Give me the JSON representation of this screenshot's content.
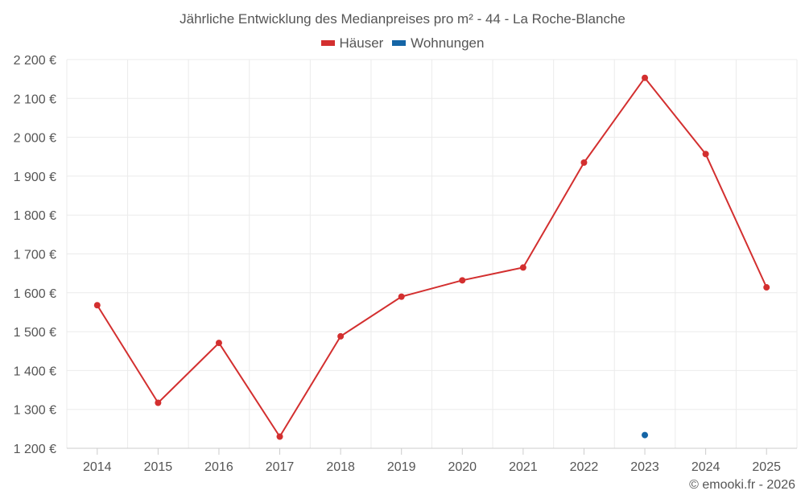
{
  "chart_data": {
    "type": "line",
    "title": "Jährliche Entwicklung des Medianpreises pro m² - 44 - La Roche-Blanche",
    "xlabel": "",
    "ylabel": "",
    "categories": [
      "2014",
      "2015",
      "2016",
      "2017",
      "2018",
      "2019",
      "2020",
      "2021",
      "2022",
      "2023",
      "2024",
      "2025"
    ],
    "ylim": [
      1200,
      2200
    ],
    "yticks": [
      1200,
      1300,
      1400,
      1500,
      1600,
      1700,
      1800,
      1900,
      2000,
      2100,
      2200
    ],
    "ytick_labels": [
      "1 200 €",
      "1 300 €",
      "1 400 €",
      "1 500 €",
      "1 600 €",
      "1 700 €",
      "1 800 €",
      "1 900 €",
      "2 000 €",
      "2 100 €",
      "2 200 €"
    ],
    "grid": true,
    "legend_position": "top-center",
    "series": [
      {
        "name": "Häuser",
        "color": "#d32f2f",
        "values": [
          1568,
          1317,
          1471,
          1230,
          1488,
          1590,
          1632,
          1665,
          1935,
          2153,
          1957,
          1614
        ]
      },
      {
        "name": "Wohnungen",
        "color": "#1565a6",
        "values": [
          null,
          null,
          null,
          null,
          null,
          null,
          null,
          null,
          null,
          1234,
          null,
          null
        ]
      }
    ]
  },
  "credit": "© emooki.fr - 2026"
}
